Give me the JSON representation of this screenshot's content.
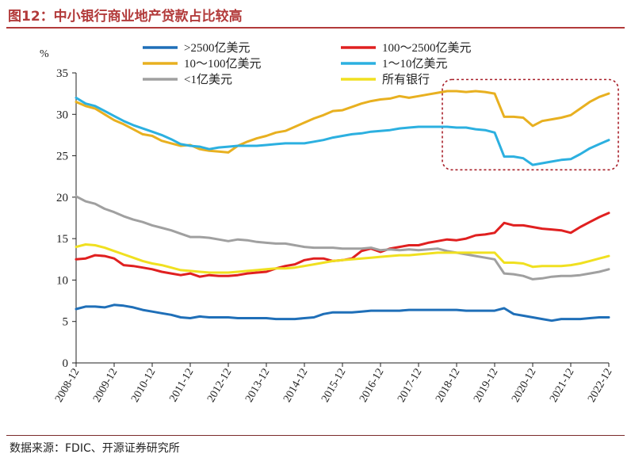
{
  "figure_title": "图12：中小银行商业地产贷款占比较高",
  "source_note": "数据来源：FDIC、开源证券研究所",
  "chart_data": {
    "type": "line",
    "ylabel": "%",
    "ylim": [
      0,
      35
    ],
    "yticks": [
      0,
      5,
      10,
      15,
      20,
      25,
      30,
      35
    ],
    "x_range": [
      0,
      56
    ],
    "tick_labels": [
      "2008-12",
      "2009-12",
      "2010-12",
      "2011-12",
      "2012-12",
      "2013-12",
      "2014-12",
      "2015-12",
      "2016-12",
      "2017-12",
      "2018-12",
      "2019-12",
      "2020-12",
      "2021-12",
      "2022-12"
    ],
    "tick_positions": [
      0,
      4,
      8,
      12,
      16,
      20,
      24,
      28,
      32,
      36,
      40,
      44,
      48,
      52,
      56
    ],
    "highlight_box": {
      "x_from": 38.5,
      "x_to": 57,
      "y_from": 23.3,
      "y_to": 34.2
    },
    "series": [
      {
        "name": ">2500亿美元",
        "color": "#1f6fb8",
        "values": [
          6.5,
          6.8,
          6.8,
          6.7,
          7.0,
          6.9,
          6.7,
          6.4,
          6.2,
          6.0,
          5.8,
          5.5,
          5.4,
          5.6,
          5.5,
          5.5,
          5.5,
          5.4,
          5.4,
          5.4,
          5.4,
          5.3,
          5.3,
          5.3,
          5.4,
          5.5,
          5.9,
          6.1,
          6.1,
          6.1,
          6.2,
          6.3,
          6.3,
          6.3,
          6.3,
          6.4,
          6.4,
          6.4,
          6.4,
          6.4,
          6.4,
          6.3,
          6.3,
          6.3,
          6.3,
          6.6,
          5.9,
          5.7,
          5.5,
          5.3,
          5.1,
          5.3,
          5.3,
          5.3,
          5.4,
          5.5,
          5.5
        ]
      },
      {
        "name": "100～2500亿美元",
        "color": "#e02020",
        "values": [
          12.5,
          12.6,
          13.0,
          12.9,
          12.6,
          11.8,
          11.7,
          11.5,
          11.3,
          11.0,
          10.8,
          10.6,
          10.8,
          10.4,
          10.6,
          10.5,
          10.5,
          10.6,
          10.8,
          10.9,
          11.0,
          11.4,
          11.7,
          11.9,
          12.4,
          12.6,
          12.6,
          12.3,
          12.4,
          12.6,
          13.5,
          13.8,
          13.4,
          13.8,
          14.0,
          14.2,
          14.2,
          14.5,
          14.7,
          14.9,
          14.8,
          15.0,
          15.4,
          15.5,
          15.7,
          16.9,
          16.6,
          16.6,
          16.4,
          16.2,
          16.1,
          16.0,
          15.7,
          16.4,
          17.0,
          17.6,
          18.1
        ]
      },
      {
        "name": "10～100亿美元",
        "color": "#e8b020",
        "values": [
          31.5,
          31.0,
          30.7,
          30.0,
          29.3,
          28.8,
          28.2,
          27.6,
          27.4,
          26.8,
          26.5,
          26.2,
          26.3,
          25.8,
          25.6,
          25.5,
          25.4,
          26.2,
          26.7,
          27.1,
          27.4,
          27.8,
          28.0,
          28.5,
          29.0,
          29.5,
          29.9,
          30.4,
          30.5,
          30.9,
          31.3,
          31.6,
          31.8,
          31.9,
          32.2,
          32.0,
          32.2,
          32.4,
          32.6,
          32.8,
          32.8,
          32.7,
          32.8,
          32.7,
          32.5,
          29.7,
          29.7,
          29.6,
          28.6,
          29.2,
          29.4,
          29.6,
          29.9,
          30.7,
          31.5,
          32.1,
          32.5
        ]
      },
      {
        "name": "1～10亿美元",
        "color": "#2cb0e0",
        "values": [
          32.0,
          31.3,
          31.0,
          30.4,
          29.8,
          29.2,
          28.7,
          28.3,
          27.9,
          27.5,
          27.0,
          26.4,
          26.2,
          26.1,
          25.8,
          26.0,
          26.1,
          26.2,
          26.2,
          26.2,
          26.3,
          26.4,
          26.5,
          26.5,
          26.5,
          26.7,
          26.9,
          27.2,
          27.4,
          27.6,
          27.7,
          27.9,
          28.0,
          28.1,
          28.3,
          28.4,
          28.5,
          28.5,
          28.5,
          28.5,
          28.4,
          28.4,
          28.2,
          28.1,
          27.8,
          24.9,
          24.9,
          24.7,
          23.9,
          24.1,
          24.3,
          24.5,
          24.6,
          25.2,
          25.9,
          26.4,
          26.9
        ]
      },
      {
        "name": "<1亿美元",
        "color": "#a0a0a0",
        "values": [
          20.1,
          19.5,
          19.2,
          18.6,
          18.2,
          17.7,
          17.3,
          17.0,
          16.6,
          16.3,
          16.0,
          15.6,
          15.2,
          15.2,
          15.1,
          14.9,
          14.7,
          14.9,
          14.8,
          14.6,
          14.5,
          14.4,
          14.4,
          14.2,
          14.0,
          13.9,
          13.9,
          13.9,
          13.8,
          13.8,
          13.8,
          13.9,
          13.6,
          13.7,
          13.6,
          13.7,
          13.6,
          13.7,
          13.8,
          13.5,
          13.3,
          13.1,
          12.9,
          12.7,
          12.5,
          10.8,
          10.7,
          10.5,
          10.1,
          10.2,
          10.4,
          10.5,
          10.5,
          10.6,
          10.8,
          11.0,
          11.3
        ]
      },
      {
        "name": "所有银行",
        "color": "#f0e020",
        "values": [
          14.0,
          14.3,
          14.2,
          13.9,
          13.5,
          13.1,
          12.7,
          12.3,
          12.0,
          11.8,
          11.5,
          11.2,
          11.1,
          11.0,
          10.9,
          10.9,
          10.9,
          11.0,
          11.1,
          11.2,
          11.3,
          11.4,
          11.4,
          11.5,
          11.7,
          11.9,
          12.1,
          12.3,
          12.4,
          12.5,
          12.6,
          12.7,
          12.8,
          12.9,
          13.0,
          13.0,
          13.1,
          13.2,
          13.3,
          13.3,
          13.3,
          13.3,
          13.3,
          13.3,
          13.3,
          12.1,
          12.1,
          12.0,
          11.6,
          11.7,
          11.7,
          11.7,
          11.8,
          12.0,
          12.3,
          12.6,
          12.9
        ]
      }
    ]
  }
}
